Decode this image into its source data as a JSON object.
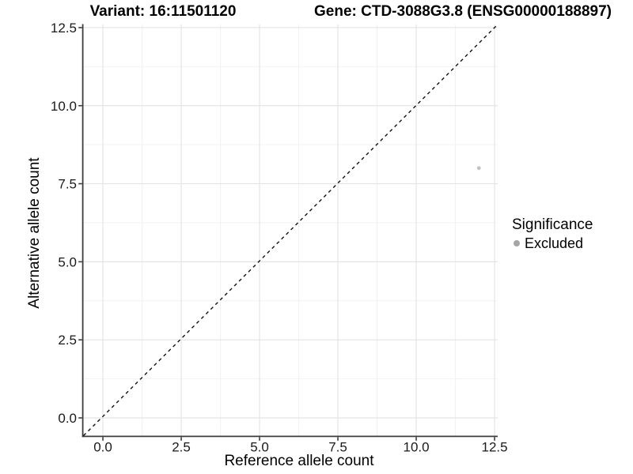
{
  "chart_data": {
    "type": "scatter",
    "titles": {
      "variant": "Variant: 16:11501120",
      "gene": "Gene: CTD-3088G3.8 (ENSG00000188897)"
    },
    "xlabel": "Reference allele count",
    "ylabel": "Alternative allele count",
    "xlim": [
      -0.62,
      12.6
    ],
    "ylim": [
      -0.57,
      12.6
    ],
    "x_ticks": [
      {
        "value": 0,
        "label": "0.0"
      },
      {
        "value": 2.5,
        "label": "2.5"
      },
      {
        "value": 5,
        "label": "5.0"
      },
      {
        "value": 7.5,
        "label": "7.5"
      },
      {
        "value": 10,
        "label": "10.0"
      },
      {
        "value": 12.5,
        "label": "12.5"
      }
    ],
    "y_ticks": [
      {
        "value": 0,
        "label": "0.0"
      },
      {
        "value": 2.5,
        "label": "2.5"
      },
      {
        "value": 5,
        "label": "5.0"
      },
      {
        "value": 7.5,
        "label": "7.5"
      },
      {
        "value": 10,
        "label": "10.0"
      },
      {
        "value": 12.5,
        "label": "12.5"
      }
    ],
    "grid": {
      "major": true,
      "minor": true
    },
    "identity_line": {
      "style": "dashed",
      "slope": 1,
      "intercept": 0
    },
    "series": [
      {
        "name": "Excluded",
        "color": "#c2c2c2",
        "points": [
          {
            "x": 12,
            "y": 8
          }
        ]
      }
    ],
    "legend": {
      "title": "Significance",
      "position": "right",
      "items": [
        {
          "label": "Excluded",
          "color": "#a6a6a6"
        }
      ]
    },
    "colors": {
      "background": "#ffffff",
      "axis_line": "#3c3c3c",
      "tick_text": "#1a1a1a",
      "grid_major": "#e4e4e4",
      "grid_minor": "#f2f2f2",
      "identity_line": "#111111",
      "point": "#c2c2c2",
      "legend_point": "#a6a6a6"
    }
  }
}
